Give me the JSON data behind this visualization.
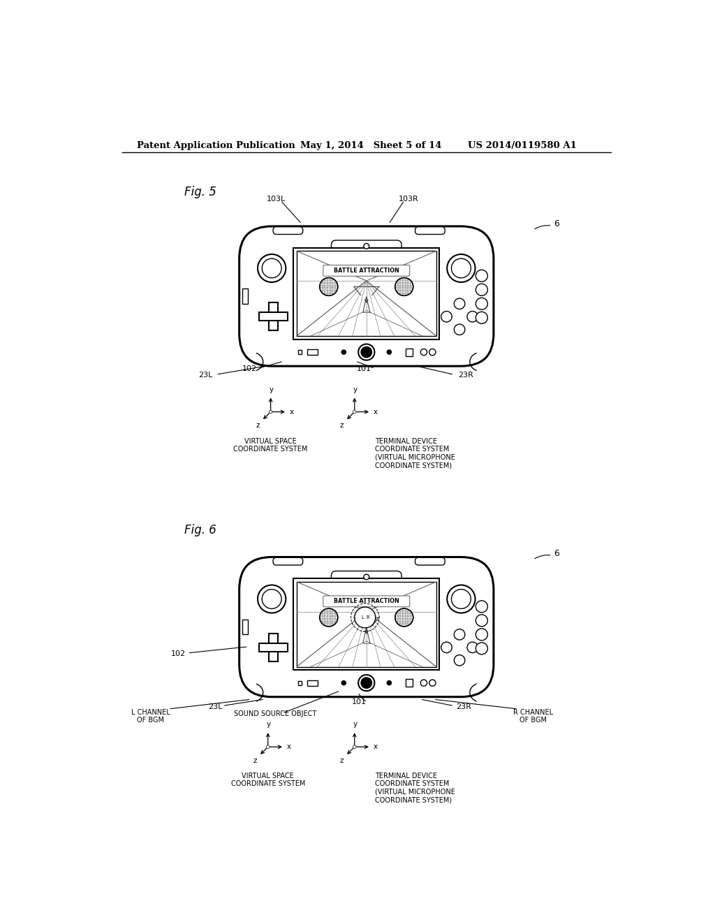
{
  "bg_color": "#ffffff",
  "header_left": "Patent Application Publication",
  "header_mid": "May 1, 2014   Sheet 5 of 14",
  "header_right": "US 2014/0119580 A1"
}
